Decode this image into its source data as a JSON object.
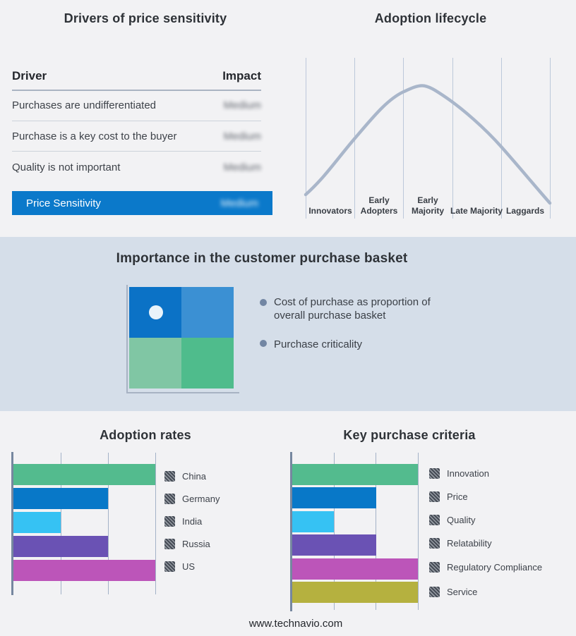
{
  "drivers_panel": {
    "title": "Drivers of price sensitivity",
    "col_driver": "Driver",
    "col_impact": "Impact",
    "rows": [
      {
        "driver": "Purchases are undifferentiated",
        "impact": "Medium",
        "impact_blurred": true
      },
      {
        "driver": "Purchase is a key cost to the buyer",
        "impact": "Medium",
        "impact_blurred": true
      },
      {
        "driver": "Quality is not important",
        "impact": "Medium",
        "impact_blurred": true
      }
    ],
    "summary_row": {
      "driver": "Price Sensitivity",
      "impact": "Medium",
      "impact_blurred": true,
      "bg": "#0b79ca"
    }
  },
  "basket_panel": {
    "title": "Importance in the customer purchase basket",
    "bullets": [
      "Cost of purchase as proportion of overall purchase basket",
      "Purchase criticality"
    ],
    "band_bg": "#d5dee9",
    "quadrant": {
      "top_left": "#0b72c6",
      "top_right": "#3b90d3",
      "bottom_left": "#80c6a4",
      "bottom_right": "#4fbc8c",
      "marker": "white dot in top-left quadrant"
    }
  },
  "footer": {
    "url": "www.technavio.com"
  },
  "chart_data": [
    {
      "type": "line",
      "title": "Adoption lifecycle",
      "x_categories": [
        "Innovators",
        "Early Adopters",
        "Early Majority",
        "Late Majority",
        "Laggards"
      ],
      "description": "Bell-shaped adoption curve rising from Innovators, peaking at Early Majority, declining through Laggards",
      "curve_points_pct_x_y": [
        [
          0,
          15
        ],
        [
          20,
          50
        ],
        [
          40,
          79
        ],
        [
          48,
          82
        ],
        [
          60,
          73
        ],
        [
          80,
          45
        ],
        [
          100,
          10
        ]
      ],
      "color": "#a9b6ca",
      "grid": "vertical category dividers, no numeric axes"
    },
    {
      "type": "bar",
      "orientation": "horizontal",
      "title": "Adoption rates",
      "categories": [
        "China",
        "Germany",
        "India",
        "Russia",
        "US"
      ],
      "values": [
        3,
        2,
        1,
        2,
        3
      ],
      "value_note": "relative units estimated from unlabeled gridlines; axis max 3",
      "xlim": [
        0,
        3
      ],
      "colors": [
        "#53bb8e",
        "#0878c8",
        "#36c2f3",
        "#6a52b4",
        "#bc55b9"
      ],
      "legend_position": "right",
      "legend_marker": "hatched square",
      "grid": true
    },
    {
      "type": "bar",
      "orientation": "horizontal",
      "title": "Key purchase criteria",
      "categories": [
        "Innovation",
        "Price",
        "Quality",
        "Relatability",
        "Regulatory Compliance",
        "Service"
      ],
      "values": [
        3,
        2,
        1,
        2,
        3,
        3
      ],
      "value_note": "relative units estimated from unlabeled gridlines; axis max 3",
      "xlim": [
        0,
        3
      ],
      "colors": [
        "#53bb8e",
        "#0878c8",
        "#36c2f3",
        "#6a52b4",
        "#bc55b9",
        "#b5b13f"
      ],
      "legend_position": "right",
      "legend_marker": "hatched square",
      "grid": true
    }
  ]
}
